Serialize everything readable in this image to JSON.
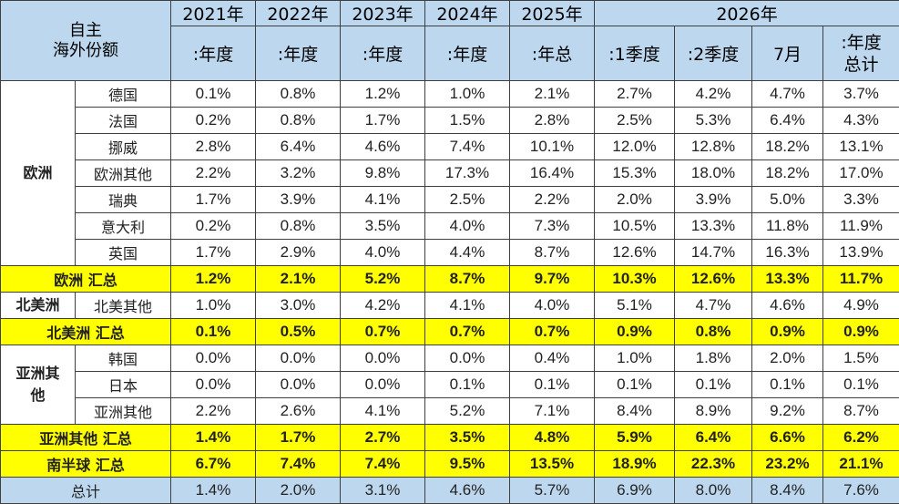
{
  "header": {
    "corner_line1": "自主",
    "corner_line2": "海外份额",
    "years": [
      "2021年",
      "2022年",
      "2023年",
      "2024年",
      "2025年",
      "2026年"
    ],
    "subheaders": [
      ":年度",
      ":年度",
      ":年度",
      ":年度",
      ":年总",
      ":1季度",
      ":2季度",
      "7月"
    ],
    "last_sub_line1": ":年度",
    "last_sub_line2": "总计"
  },
  "regions": {
    "europe": {
      "name": "欧洲",
      "rows": [
        {
          "country": "德国",
          "values": [
            "0.1%",
            "0.8%",
            "1.2%",
            "1.0%",
            "2.1%",
            "2.7%",
            "4.2%",
            "4.7%",
            "3.7%"
          ]
        },
        {
          "country": "法国",
          "values": [
            "0.2%",
            "0.8%",
            "1.7%",
            "1.5%",
            "2.8%",
            "2.5%",
            "5.3%",
            "6.4%",
            "4.3%"
          ]
        },
        {
          "country": "挪威",
          "values": [
            "2.8%",
            "6.4%",
            "4.6%",
            "7.4%",
            "10.1%",
            "12.0%",
            "12.8%",
            "18.2%",
            "13.1%"
          ]
        },
        {
          "country": "欧洲其他",
          "values": [
            "2.2%",
            "3.2%",
            "9.8%",
            "17.3%",
            "16.4%",
            "15.3%",
            "18.0%",
            "18.2%",
            "17.0%"
          ]
        },
        {
          "country": "瑞典",
          "values": [
            "1.7%",
            "3.9%",
            "4.1%",
            "2.5%",
            "2.2%",
            "2.0%",
            "3.9%",
            "5.0%",
            "3.3%"
          ]
        },
        {
          "country": "意大利",
          "values": [
            "0.2%",
            "0.8%",
            "3.5%",
            "4.0%",
            "7.3%",
            "10.5%",
            "13.3%",
            "11.8%",
            "11.9%"
          ]
        },
        {
          "country": "英国",
          "values": [
            "1.7%",
            "2.9%",
            "4.0%",
            "4.4%",
            "8.7%",
            "12.6%",
            "14.7%",
            "16.3%",
            "13.9%"
          ]
        }
      ],
      "subtotal": {
        "label": "欧洲 汇总",
        "values": [
          "1.2%",
          "2.1%",
          "5.2%",
          "8.7%",
          "9.7%",
          "10.3%",
          "12.6%",
          "13.3%",
          "11.7%"
        ]
      }
    },
    "north_america": {
      "name": "北美洲",
      "rows": [
        {
          "country": "北美其他",
          "values": [
            "1.0%",
            "3.0%",
            "4.2%",
            "4.1%",
            "4.0%",
            "5.1%",
            "4.7%",
            "4.6%",
            "4.9%"
          ]
        }
      ],
      "subtotal": {
        "label": "北美洲 汇总",
        "values": [
          "0.1%",
          "0.5%",
          "0.7%",
          "0.7%",
          "0.7%",
          "0.9%",
          "0.8%",
          "0.9%",
          "0.9%"
        ]
      }
    },
    "asia": {
      "name_line1": "亚洲其",
      "name_line2": "他",
      "rows": [
        {
          "country": "韩国",
          "values": [
            "0.0%",
            "0.0%",
            "0.0%",
            "0.0%",
            "0.4%",
            "1.0%",
            "1.8%",
            "2.0%",
            "1.5%"
          ]
        },
        {
          "country": "日本",
          "values": [
            "0.0%",
            "0.0%",
            "0.0%",
            "0.1%",
            "0.1%",
            "0.1%",
            "0.1%",
            "0.1%",
            "0.1%"
          ]
        },
        {
          "country": "亚洲其他",
          "values": [
            "2.2%",
            "2.6%",
            "4.1%",
            "5.2%",
            "7.1%",
            "8.4%",
            "8.9%",
            "9.2%",
            "8.7%"
          ]
        }
      ],
      "subtotal": {
        "label": "亚洲其他 汇总",
        "values": [
          "1.4%",
          "1.7%",
          "2.7%",
          "3.5%",
          "4.8%",
          "5.9%",
          "6.4%",
          "6.6%",
          "6.2%"
        ]
      }
    }
  },
  "southern_hemisphere": {
    "label": "南半球 汇总",
    "values": [
      "6.7%",
      "7.4%",
      "7.4%",
      "9.5%",
      "13.5%",
      "18.9%",
      "22.3%",
      "23.2%",
      "21.1%"
    ]
  },
  "total": {
    "label": "总计",
    "values": [
      "1.4%",
      "2.0%",
      "3.1%",
      "4.6%",
      "5.7%",
      "6.9%",
      "8.0%",
      "8.4%",
      "7.6%"
    ]
  }
}
